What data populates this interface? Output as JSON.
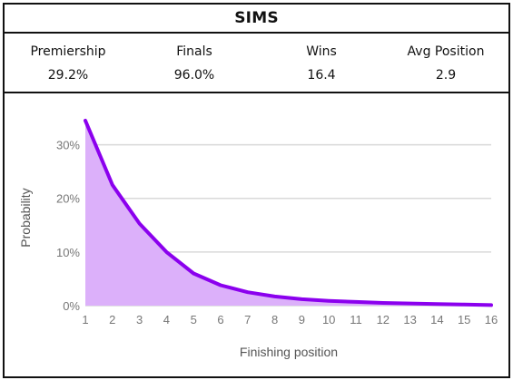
{
  "header": {
    "title": "SIMS"
  },
  "stats": [
    {
      "label": "Premiership",
      "value": "29.2%"
    },
    {
      "label": "Finals",
      "value": "96.0%"
    },
    {
      "label": "Wins",
      "value": "16.4"
    },
    {
      "label": "Avg Position",
      "value": "2.9"
    }
  ],
  "colors": {
    "line": "#8b00ee",
    "fill": "#dcb0fa",
    "grid": "#d9d9d9",
    "border": "#111111"
  },
  "chart_data": {
    "type": "area",
    "xlabel": "Finishing position",
    "ylabel": "Probability",
    "x": [
      1,
      2,
      3,
      4,
      5,
      6,
      7,
      8,
      9,
      10,
      11,
      12,
      13,
      14,
      15,
      16
    ],
    "x_tick_labels": [
      "1",
      "2",
      "3",
      "4",
      "5",
      "6",
      "7",
      "8",
      "9",
      "10",
      "11",
      "12",
      "13",
      "14",
      "15",
      "16"
    ],
    "y": [
      34.5,
      22.5,
      15.3,
      10.0,
      6.0,
      3.8,
      2.5,
      1.7,
      1.2,
      0.9,
      0.7,
      0.5,
      0.4,
      0.3,
      0.2,
      0.1
    ],
    "y_unit": "%",
    "y_ticks": [
      0,
      10,
      20,
      30
    ],
    "y_tick_labels": [
      "0%",
      "10%",
      "20%",
      "30%"
    ],
    "ylim": [
      0,
      35
    ],
    "xlim": [
      1,
      16
    ],
    "grid": true,
    "legend": "none"
  }
}
